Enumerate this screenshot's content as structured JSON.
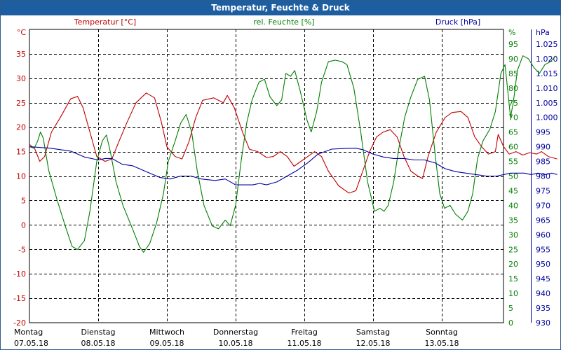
{
  "window": {
    "title": "Temperatur, Feuchte & Druck"
  },
  "colors": {
    "temperature": "#c00000",
    "humidity": "#008000",
    "pressure": "#0000a0",
    "title_bar": "#1c5ea0"
  },
  "chart_data": {
    "type": "line",
    "title": "Temperatur, Feuchte & Druck",
    "grid": true,
    "x_range_days": [
      0,
      7
    ],
    "x_ticks": [
      {
        "day": "Montag",
        "date": "07.05.18"
      },
      {
        "day": "Dienstag",
        "date": "08.05.18"
      },
      {
        "day": "Mittwoch",
        "date": "09.05.18"
      },
      {
        "day": "Donnerstag",
        "date": "10.05.18"
      },
      {
        "day": "Freitag",
        "date": "11.05.18"
      },
      {
        "day": "Samstag",
        "date": "12.05.18"
      },
      {
        "day": "Sonntag",
        "date": "13.05.18"
      }
    ],
    "axes": {
      "temperature": {
        "label": "Temperatur [°C]",
        "unit": "°C",
        "side": "left",
        "ylim": [
          -20,
          40
        ],
        "ticks": [
          "-20",
          "-15",
          "-10",
          "-5",
          "0",
          "5",
          "10",
          "15",
          "20",
          "25",
          "30",
          "35"
        ]
      },
      "humidity": {
        "label": "rel. Feuchte [%]",
        "unit": "%",
        "side": "right",
        "ylim": [
          0,
          100
        ],
        "ticks": [
          "0",
          "5",
          "10",
          "15",
          "20",
          "25",
          "30",
          "35",
          "40",
          "45",
          "50",
          "55",
          "60",
          "65",
          "70",
          "75",
          "80",
          "85",
          "90",
          "95"
        ]
      },
      "pressure": {
        "label": "Druck [hPa]",
        "unit": "hPa",
        "side": "right",
        "ylim": [
          930,
          1030
        ],
        "ticks": [
          "930",
          "935",
          "940",
          "945",
          "950",
          "955",
          "960",
          "965",
          "970",
          "975",
          "980",
          "985",
          "990",
          "995",
          "1.000",
          "1.005",
          "1.010",
          "1.015",
          "1.020",
          "1.025"
        ]
      }
    },
    "series": [
      {
        "key": "temperature",
        "name": "Temperatur [°C]",
        "color": "#c00000",
        "points": [
          [
            0,
            16.5
          ],
          [
            0.08,
            15.5
          ],
          [
            0.15,
            13
          ],
          [
            0.22,
            14
          ],
          [
            0.32,
            19
          ],
          [
            0.45,
            22
          ],
          [
            0.6,
            25.8
          ],
          [
            0.7,
            26.3
          ],
          [
            0.78,
            24
          ],
          [
            0.88,
            19
          ],
          [
            0.98,
            14
          ],
          [
            1.1,
            13
          ],
          [
            1.2,
            13.5
          ],
          [
            1.3,
            17
          ],
          [
            1.42,
            21
          ],
          [
            1.55,
            25
          ],
          [
            1.7,
            27
          ],
          [
            1.82,
            26
          ],
          [
            1.92,
            21
          ],
          [
            2.0,
            16
          ],
          [
            2.12,
            14
          ],
          [
            2.22,
            13.5
          ],
          [
            2.32,
            17
          ],
          [
            2.42,
            22
          ],
          [
            2.52,
            25.5
          ],
          [
            2.68,
            26
          ],
          [
            2.82,
            25
          ],
          [
            2.88,
            26.5
          ],
          [
            2.98,
            24
          ],
          [
            3.1,
            19
          ],
          [
            3.2,
            15.5
          ],
          [
            3.32,
            15
          ],
          [
            3.45,
            13.8
          ],
          [
            3.55,
            14
          ],
          [
            3.65,
            15
          ],
          [
            3.75,
            14
          ],
          [
            3.85,
            12
          ],
          [
            3.95,
            13
          ],
          [
            4.05,
            14
          ],
          [
            4.15,
            15
          ],
          [
            4.25,
            14
          ],
          [
            4.35,
            11
          ],
          [
            4.5,
            8
          ],
          [
            4.65,
            6.5
          ],
          [
            4.75,
            7
          ],
          [
            4.85,
            11
          ],
          [
            4.95,
            15
          ],
          [
            5.05,
            18
          ],
          [
            5.15,
            19
          ],
          [
            5.25,
            19.5
          ],
          [
            5.35,
            18
          ],
          [
            5.45,
            14
          ],
          [
            5.55,
            11
          ],
          [
            5.65,
            10
          ],
          [
            5.72,
            9.5
          ],
          [
            5.8,
            14
          ],
          [
            5.92,
            19
          ],
          [
            6.05,
            22
          ],
          [
            6.15,
            23
          ],
          [
            6.28,
            23.2
          ],
          [
            6.38,
            22
          ],
          [
            6.48,
            18
          ],
          [
            6.58,
            16
          ],
          [
            6.68,
            14.5
          ],
          [
            6.78,
            15
          ],
          [
            6.82,
            18.5
          ],
          [
            6.9,
            16
          ],
          [
            6.98,
            14.5
          ],
          [
            7.08,
            15
          ],
          [
            7.18,
            14.3
          ],
          [
            7.28,
            14.8
          ],
          [
            7.38,
            14.5
          ],
          [
            7.45,
            15
          ],
          [
            7.55,
            14
          ],
          [
            7.68,
            13.5
          ]
        ]
      },
      {
        "key": "humidity",
        "name": "rel. Feuchte [%]",
        "color": "#008000",
        "points": [
          [
            0,
            60
          ],
          [
            0.07,
            59.5
          ],
          [
            0.12,
            62
          ],
          [
            0.16,
            65
          ],
          [
            0.2,
            63
          ],
          [
            0.28,
            52
          ],
          [
            0.4,
            42
          ],
          [
            0.52,
            33
          ],
          [
            0.62,
            26
          ],
          [
            0.7,
            25
          ],
          [
            0.8,
            28
          ],
          [
            0.88,
            38
          ],
          [
            0.98,
            55
          ],
          [
            1.06,
            62
          ],
          [
            1.12,
            64
          ],
          [
            1.18,
            58
          ],
          [
            1.26,
            48
          ],
          [
            1.36,
            40
          ],
          [
            1.5,
            32
          ],
          [
            1.6,
            26
          ],
          [
            1.66,
            24
          ],
          [
            1.75,
            27
          ],
          [
            1.85,
            34
          ],
          [
            1.95,
            44
          ],
          [
            2.02,
            55
          ],
          [
            2.12,
            62
          ],
          [
            2.2,
            68
          ],
          [
            2.28,
            71
          ],
          [
            2.36,
            65
          ],
          [
            2.44,
            52
          ],
          [
            2.54,
            40
          ],
          [
            2.66,
            33
          ],
          [
            2.75,
            32
          ],
          [
            2.85,
            35
          ],
          [
            2.92,
            33
          ],
          [
            3.0,
            40
          ],
          [
            3.08,
            55
          ],
          [
            3.16,
            68
          ],
          [
            3.24,
            76
          ],
          [
            3.34,
            82
          ],
          [
            3.42,
            83
          ],
          [
            3.5,
            77
          ],
          [
            3.6,
            74
          ],
          [
            3.67,
            76
          ],
          [
            3.73,
            85
          ],
          [
            3.8,
            84
          ],
          [
            3.86,
            86
          ],
          [
            3.94,
            79
          ],
          [
            4.04,
            69
          ],
          [
            4.1,
            65
          ],
          [
            4.18,
            72
          ],
          [
            4.25,
            82
          ],
          [
            4.35,
            89
          ],
          [
            4.45,
            89.5
          ],
          [
            4.55,
            89
          ],
          [
            4.62,
            88
          ],
          [
            4.72,
            80
          ],
          [
            4.82,
            65
          ],
          [
            4.92,
            48
          ],
          [
            5.02,
            38
          ],
          [
            5.1,
            39
          ],
          [
            5.16,
            38
          ],
          [
            5.22,
            40
          ],
          [
            5.3,
            48
          ],
          [
            5.38,
            60
          ],
          [
            5.46,
            70
          ],
          [
            5.55,
            77
          ],
          [
            5.65,
            83
          ],
          [
            5.75,
            84
          ],
          [
            5.82,
            76
          ],
          [
            5.9,
            58
          ],
          [
            5.97,
            44
          ],
          [
            6.04,
            39
          ],
          [
            6.12,
            40
          ],
          [
            6.2,
            37
          ],
          [
            6.3,
            35
          ],
          [
            6.38,
            38
          ],
          [
            6.45,
            44
          ],
          [
            6.52,
            56
          ],
          [
            6.6,
            62
          ],
          [
            6.7,
            66
          ],
          [
            6.78,
            72
          ],
          [
            6.86,
            85
          ],
          [
            6.92,
            88
          ],
          [
            7.0,
            70
          ],
          [
            7.04,
            75
          ],
          [
            7.1,
            86
          ],
          [
            7.18,
            91
          ],
          [
            7.26,
            90
          ],
          [
            7.34,
            87
          ],
          [
            7.42,
            85
          ],
          [
            7.5,
            88
          ],
          [
            7.58,
            89
          ],
          [
            7.66,
            91
          ]
        ]
      },
      {
        "key": "pressure",
        "name": "Druck [hPa]",
        "color": "#0000a0",
        "points": [
          [
            0,
            990
          ],
          [
            0.3,
            989.5
          ],
          [
            0.6,
            988.5
          ],
          [
            0.8,
            986.5
          ],
          [
            1.0,
            985.5
          ],
          [
            1.1,
            986
          ],
          [
            1.2,
            986
          ],
          [
            1.35,
            984
          ],
          [
            1.5,
            983.5
          ],
          [
            1.7,
            981.5
          ],
          [
            1.9,
            979.5
          ],
          [
            2.05,
            979
          ],
          [
            2.2,
            980
          ],
          [
            2.35,
            980
          ],
          [
            2.5,
            979
          ],
          [
            2.7,
            978.5
          ],
          [
            2.85,
            979
          ],
          [
            3.0,
            977
          ],
          [
            3.1,
            977
          ],
          [
            3.25,
            977
          ],
          [
            3.35,
            977.5
          ],
          [
            3.45,
            977
          ],
          [
            3.6,
            978
          ],
          [
            3.75,
            980
          ],
          [
            3.9,
            982
          ],
          [
            4.05,
            984.5
          ],
          [
            4.2,
            987.5
          ],
          [
            4.4,
            989.2
          ],
          [
            4.6,
            989.4
          ],
          [
            4.75,
            989.5
          ],
          [
            4.85,
            989
          ],
          [
            5.0,
            987.5
          ],
          [
            5.15,
            986.5
          ],
          [
            5.3,
            986
          ],
          [
            5.45,
            986
          ],
          [
            5.6,
            985.5
          ],
          [
            5.75,
            985.5
          ],
          [
            5.9,
            984.5
          ],
          [
            6.05,
            982.5
          ],
          [
            6.2,
            981.5
          ],
          [
            6.35,
            981
          ],
          [
            6.5,
            980.5
          ],
          [
            6.65,
            980
          ],
          [
            6.8,
            980
          ],
          [
            6.9,
            980.5
          ],
          [
            7.0,
            981
          ],
          [
            7.1,
            981
          ],
          [
            7.2,
            981
          ],
          [
            7.3,
            980.5
          ],
          [
            7.4,
            981
          ],
          [
            7.5,
            980.5
          ],
          [
            7.6,
            981
          ],
          [
            7.68,
            980.5
          ]
        ]
      }
    ]
  }
}
